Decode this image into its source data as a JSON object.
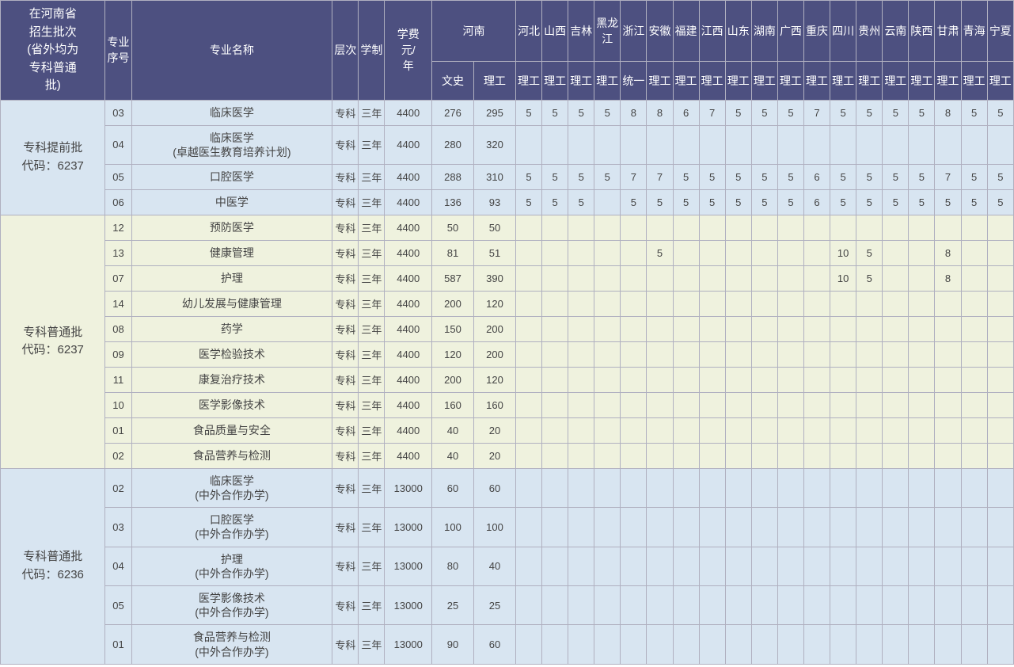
{
  "header": {
    "batch": "在河南省\n招生批次\n(省外均为\n专科普通\n批)",
    "seq": "专业序号",
    "major": "专业名称",
    "level": "层次",
    "duration": "学制",
    "fee": "学费\n元/\n年",
    "henan": "河南",
    "henan_wen": "文史",
    "henan_li": "理工",
    "provinces": [
      "河北",
      "山西",
      "吉林",
      "黑龙江",
      "浙江",
      "安徽",
      "福建",
      "江西",
      "山东",
      "湖南",
      "广西",
      "重庆",
      "四川",
      "贵州",
      "云南",
      "陕西",
      "甘肃",
      "青海",
      "宁夏"
    ],
    "prov_sub_li": "理工",
    "prov_sub_tongyi": "统一"
  },
  "sections": [
    {
      "class": "sec1",
      "batch": "专科提前批\n代码：6237",
      "rows": [
        {
          "seq": "03",
          "major": "临床医学",
          "level": "专科",
          "dur": "三年",
          "fee": "4400",
          "wen": "276",
          "li": "295",
          "p": [
            "5",
            "5",
            "5",
            "5",
            "8",
            "8",
            "6",
            "7",
            "5",
            "5",
            "5",
            "7",
            "5",
            "5",
            "5",
            "5",
            "8",
            "5",
            "5"
          ]
        },
        {
          "seq": "04",
          "major": "临床医学\n(卓越医生教育培养计划)",
          "level": "专科",
          "dur": "三年",
          "fee": "4400",
          "wen": "280",
          "li": "320",
          "p": [
            "",
            "",
            "",
            "",
            "",
            "",
            "",
            "",
            "",
            "",
            "",
            "",
            "",
            "",
            "",
            "",
            "",
            "",
            ""
          ]
        },
        {
          "seq": "05",
          "major": "口腔医学",
          "level": "专科",
          "dur": "三年",
          "fee": "4400",
          "wen": "288",
          "li": "310",
          "p": [
            "5",
            "5",
            "5",
            "5",
            "7",
            "7",
            "5",
            "5",
            "5",
            "5",
            "5",
            "6",
            "5",
            "5",
            "5",
            "5",
            "7",
            "5",
            "5"
          ]
        },
        {
          "seq": "06",
          "major": "中医学",
          "level": "专科",
          "dur": "三年",
          "fee": "4400",
          "wen": "136",
          "li": "93",
          "p": [
            "5",
            "5",
            "5",
            "",
            "5",
            "5",
            "5",
            "5",
            "5",
            "5",
            "5",
            "6",
            "5",
            "5",
            "5",
            "5",
            "5",
            "5",
            "5"
          ]
        }
      ]
    },
    {
      "class": "sec2",
      "batch": "专科普通批\n代码：6237",
      "rows": [
        {
          "seq": "12",
          "major": "预防医学",
          "level": "专科",
          "dur": "三年",
          "fee": "4400",
          "wen": "50",
          "li": "50",
          "p": [
            "",
            "",
            "",
            "",
            "",
            "",
            "",
            "",
            "",
            "",
            "",
            "",
            "",
            "",
            "",
            "",
            "",
            "",
            ""
          ]
        },
        {
          "seq": "13",
          "major": "健康管理",
          "level": "专科",
          "dur": "三年",
          "fee": "4400",
          "wen": "81",
          "li": "51",
          "p": [
            "",
            "",
            "",
            "",
            "",
            "5",
            "",
            "",
            "",
            "",
            "",
            "",
            "10",
            "5",
            "",
            "",
            "8",
            "",
            ""
          ]
        },
        {
          "seq": "07",
          "major": "护理",
          "level": "专科",
          "dur": "三年",
          "fee": "4400",
          "wen": "587",
          "li": "390",
          "p": [
            "",
            "",
            "",
            "",
            "",
            "",
            "",
            "",
            "",
            "",
            "",
            "",
            "10",
            "5",
            "",
            "",
            "8",
            "",
            ""
          ]
        },
        {
          "seq": "14",
          "major": "幼儿发展与健康管理",
          "level": "专科",
          "dur": "三年",
          "fee": "4400",
          "wen": "200",
          "li": "120",
          "p": [
            "",
            "",
            "",
            "",
            "",
            "",
            "",
            "",
            "",
            "",
            "",
            "",
            "",
            "",
            "",
            "",
            "",
            "",
            ""
          ]
        },
        {
          "seq": "08",
          "major": "药学",
          "level": "专科",
          "dur": "三年",
          "fee": "4400",
          "wen": "150",
          "li": "200",
          "p": [
            "",
            "",
            "",
            "",
            "",
            "",
            "",
            "",
            "",
            "",
            "",
            "",
            "",
            "",
            "",
            "",
            "",
            "",
            ""
          ]
        },
        {
          "seq": "09",
          "major": "医学检验技术",
          "level": "专科",
          "dur": "三年",
          "fee": "4400",
          "wen": "120",
          "li": "200",
          "p": [
            "",
            "",
            "",
            "",
            "",
            "",
            "",
            "",
            "",
            "",
            "",
            "",
            "",
            "",
            "",
            "",
            "",
            "",
            ""
          ]
        },
        {
          "seq": "11",
          "major": "康复治疗技术",
          "level": "专科",
          "dur": "三年",
          "fee": "4400",
          "wen": "200",
          "li": "120",
          "p": [
            "",
            "",
            "",
            "",
            "",
            "",
            "",
            "",
            "",
            "",
            "",
            "",
            "",
            "",
            "",
            "",
            "",
            "",
            ""
          ]
        },
        {
          "seq": "10",
          "major": "医学影像技术",
          "level": "专科",
          "dur": "三年",
          "fee": "4400",
          "wen": "160",
          "li": "160",
          "p": [
            "",
            "",
            "",
            "",
            "",
            "",
            "",
            "",
            "",
            "",
            "",
            "",
            "",
            "",
            "",
            "",
            "",
            "",
            ""
          ]
        },
        {
          "seq": "01",
          "major": "食品质量与安全",
          "level": "专科",
          "dur": "三年",
          "fee": "4400",
          "wen": "40",
          "li": "20",
          "p": [
            "",
            "",
            "",
            "",
            "",
            "",
            "",
            "",
            "",
            "",
            "",
            "",
            "",
            "",
            "",
            "",
            "",
            "",
            ""
          ]
        },
        {
          "seq": "02",
          "major": "食品营养与检测",
          "level": "专科",
          "dur": "三年",
          "fee": "4400",
          "wen": "40",
          "li": "20",
          "p": [
            "",
            "",
            "",
            "",
            "",
            "",
            "",
            "",
            "",
            "",
            "",
            "",
            "",
            "",
            "",
            "",
            "",
            "",
            ""
          ]
        }
      ]
    },
    {
      "class": "sec3",
      "batch": "专科普通批\n代码：6236",
      "rows": [
        {
          "seq": "02",
          "major": "临床医学\n(中外合作办学)",
          "level": "专科",
          "dur": "三年",
          "fee": "13000",
          "wen": "60",
          "li": "60",
          "p": [
            "",
            "",
            "",
            "",
            "",
            "",
            "",
            "",
            "",
            "",
            "",
            "",
            "",
            "",
            "",
            "",
            "",
            "",
            ""
          ]
        },
        {
          "seq": "03",
          "major": "口腔医学\n(中外合作办学)",
          "level": "专科",
          "dur": "三年",
          "fee": "13000",
          "wen": "100",
          "li": "100",
          "p": [
            "",
            "",
            "",
            "",
            "",
            "",
            "",
            "",
            "",
            "",
            "",
            "",
            "",
            "",
            "",
            "",
            "",
            "",
            ""
          ]
        },
        {
          "seq": "04",
          "major": "护理\n(中外合作办学)",
          "level": "专科",
          "dur": "三年",
          "fee": "13000",
          "wen": "80",
          "li": "40",
          "p": [
            "",
            "",
            "",
            "",
            "",
            "",
            "",
            "",
            "",
            "",
            "",
            "",
            "",
            "",
            "",
            "",
            "",
            "",
            ""
          ]
        },
        {
          "seq": "05",
          "major": "医学影像技术\n(中外合作办学)",
          "level": "专科",
          "dur": "三年",
          "fee": "13000",
          "wen": "25",
          "li": "25",
          "p": [
            "",
            "",
            "",
            "",
            "",
            "",
            "",
            "",
            "",
            "",
            "",
            "",
            "",
            "",
            "",
            "",
            "",
            "",
            ""
          ]
        },
        {
          "seq": "01",
          "major": "食品营养与检测\n(中外合作办学)",
          "level": "专科",
          "dur": "三年",
          "fee": "13000",
          "wen": "90",
          "li": "60",
          "p": [
            "",
            "",
            "",
            "",
            "",
            "",
            "",
            "",
            "",
            "",
            "",
            "",
            "",
            "",
            "",
            "",
            "",
            "",
            ""
          ]
        }
      ]
    }
  ]
}
